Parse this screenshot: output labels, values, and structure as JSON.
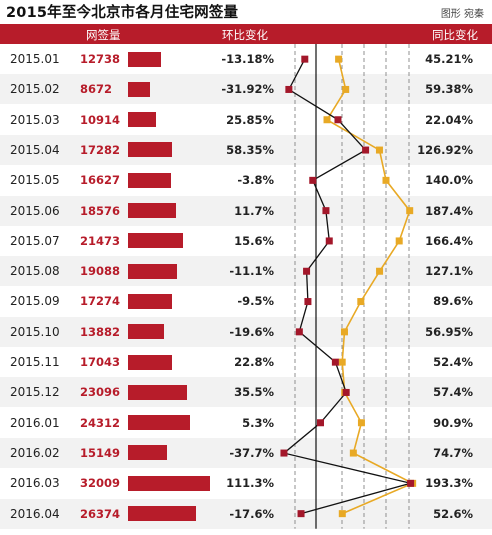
{
  "title": "2015年至今北京市各月住宅网签量",
  "credit": "图形 宛秦",
  "header": {
    "signings": "网签量",
    "mom": "环比变化",
    "yoy": "同比变化"
  },
  "colors": {
    "header_bg": "#b71c2a",
    "bar": "#b71c2a",
    "mom_series": "#111111",
    "mom_marker": "#a3172a",
    "yoy_series": "#e8a925",
    "row_stripe": "#f2f2f2"
  },
  "chart_data": {
    "type": "table",
    "categories": [
      "2015.01",
      "2015.02",
      "2015.03",
      "2015.04",
      "2015.05",
      "2015.06",
      "2015.07",
      "2015.08",
      "2015.09",
      "2015.10",
      "2015.11",
      "2015.12",
      "2016.01",
      "2016.02",
      "2016.03",
      "2016.04"
    ],
    "signings": [
      12738,
      8672,
      10914,
      17282,
      16627,
      18576,
      21473,
      19088,
      17274,
      13882,
      17043,
      23096,
      24312,
      15149,
      32009,
      26374
    ],
    "mom_labels": [
      "-13.18%",
      "-31.92%",
      "25.85%",
      "58.35%",
      "-3.8%",
      "11.7%",
      "15.6%",
      "-11.1%",
      "-9.5%",
      "-19.6%",
      "22.8%",
      "35.5%",
      "5.3%",
      "-37.7%",
      "111.3%",
      "-17.6%"
    ],
    "mom_values": [
      -13.18,
      -31.92,
      25.85,
      58.35,
      -3.8,
      11.7,
      15.6,
      -11.1,
      -9.5,
      -19.6,
      22.8,
      35.5,
      5.3,
      -37.7,
      111.3,
      -17.6
    ],
    "yoy_labels": [
      "45.21%",
      "59.38%",
      "22.04%",
      "126.92%",
      "140.0%",
      "187.4%",
      "166.4%",
      "127.1%",
      "89.6%",
      "56.95%",
      "52.4%",
      "57.4%",
      "90.9%",
      "74.7%",
      "193.3%",
      "52.6%"
    ],
    "yoy_values": [
      45.21,
      59.38,
      22.04,
      126.92,
      140.0,
      187.4,
      166.4,
      127.1,
      89.6,
      56.95,
      52.4,
      57.4,
      90.9,
      74.7,
      193.3,
      52.6
    ]
  }
}
